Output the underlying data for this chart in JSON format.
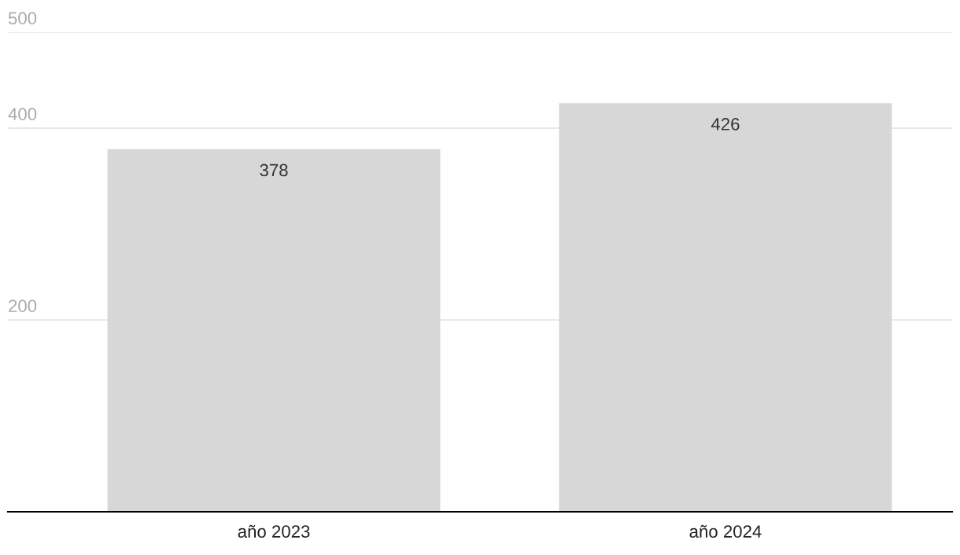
{
  "chart_data": {
    "type": "bar",
    "categories": [
      "año 2023",
      "año 2024"
    ],
    "values": [
      378,
      426
    ],
    "color": "#d7d7d7",
    "ylim": [
      0,
      500
    ],
    "yticks": [
      200,
      400,
      500
    ],
    "grid": "y",
    "data_labels": true
  }
}
